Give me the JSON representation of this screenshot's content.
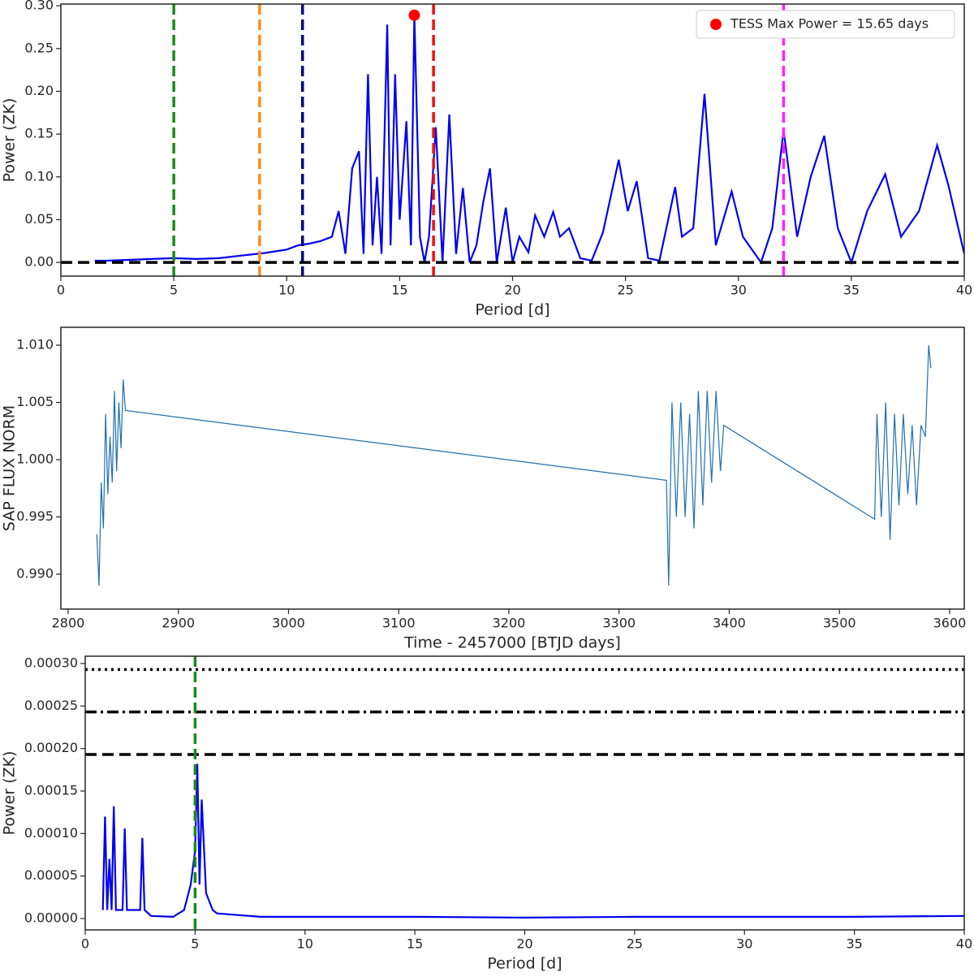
{
  "chart_data": [
    {
      "type": "line",
      "xlabel": "Period [d]",
      "ylabel": "Power (ZK)",
      "xlim": [
        0,
        40
      ],
      "ylim": [
        -0.016,
        0.302
      ],
      "xticks": [
        0,
        5,
        10,
        15,
        20,
        25,
        30,
        35,
        40
      ],
      "yticks": [
        {
          "value": 0,
          "label": "0.00"
        },
        {
          "value": 0.05,
          "label": "0.05"
        },
        {
          "value": 0.1,
          "label": "0.10"
        },
        {
          "value": 0.15,
          "label": "0.15"
        },
        {
          "value": 0.2,
          "label": "0.20"
        },
        {
          "value": 0.25,
          "label": "0.25"
        },
        {
          "value": 0.3,
          "label": "0.30"
        }
      ],
      "series": [
        {
          "color": "#0000ee",
          "x": [
            1.5,
            2,
            3,
            4,
            5,
            6,
            7,
            8,
            9,
            10,
            10.5,
            11,
            11.5,
            12,
            12.3,
            12.6,
            12.9,
            13.2,
            13.4,
            13.6,
            13.8,
            14.0,
            14.2,
            14.45,
            14.6,
            14.8,
            15.0,
            15.3,
            15.5,
            15.65,
            15.9,
            16.1,
            16.3,
            16.6,
            16.9,
            17.2,
            17.5,
            17.8,
            18.1,
            18.4,
            18.7,
            19.0,
            19.3,
            19.7,
            20.0,
            20.3,
            20.7,
            21.0,
            21.4,
            21.8,
            22.1,
            22.5,
            23.0,
            23.5,
            24.0,
            24.7,
            25.1,
            25.5,
            26.0,
            26.5,
            27.2,
            27.5,
            28.0,
            28.5,
            29.0,
            29.7,
            30.2,
            31.0,
            31.5,
            32.0,
            32.6,
            33.2,
            33.8,
            34.4,
            35.0,
            35.7,
            36.5,
            37.2,
            38.0,
            38.8,
            39.3,
            40.0
          ],
          "values": [
            0.002,
            0.002,
            0.003,
            0.004,
            0.005,
            0.004,
            0.005,
            0.008,
            0.011,
            0.015,
            0.02,
            0.022,
            0.025,
            0.03,
            0.06,
            0.01,
            0.11,
            0.13,
            0.01,
            0.22,
            0.02,
            0.1,
            0.01,
            0.278,
            0.02,
            0.22,
            0.05,
            0.165,
            0.02,
            0.289,
            0.03,
            0.0,
            0.03,
            0.158,
            0.0,
            0.173,
            0.01,
            0.087,
            0.0,
            0.02,
            0.07,
            0.11,
            0.0,
            0.064,
            0.0,
            0.03,
            0.012,
            0.055,
            0.03,
            0.059,
            0.03,
            0.04,
            0.005,
            0.002,
            0.035,
            0.12,
            0.06,
            0.095,
            0.005,
            0.002,
            0.088,
            0.03,
            0.04,
            0.197,
            0.02,
            0.083,
            0.03,
            0.0,
            0.04,
            0.155,
            0.03,
            0.1,
            0.148,
            0.04,
            0.0,
            0.06,
            0.103,
            0.03,
            0.06,
            0.137,
            0.09,
            0.01
          ]
        }
      ],
      "marker": {
        "name": "TESS Max Power = 15.65 days",
        "x": 15.65,
        "y": 0.289,
        "color": "#ff0000"
      },
      "vlines": [
        {
          "x": 5,
          "color": "#1a8a1a"
        },
        {
          "x": 8.8,
          "color": "#ff8c1a"
        },
        {
          "x": 10.7,
          "color": "#000080"
        },
        {
          "x": 16.5,
          "color": "#ee1111"
        },
        {
          "x": 32,
          "color": "#ff22ff"
        }
      ],
      "hlines": [
        {
          "y": 0,
          "style": "dashed",
          "color": "#000000"
        }
      ]
    },
    {
      "type": "line",
      "xlabel": "Time - 2457000 [BTJD days]",
      "ylabel": "SAP FLUX NORM",
      "xlim": [
        2793.4,
        3613.3
      ],
      "ylim": [
        0.98695,
        1.01156
      ],
      "xticks": [
        2800,
        2900,
        3000,
        3100,
        3200,
        3300,
        3400,
        3500,
        3600
      ],
      "yticks": [
        {
          "value": 0.99,
          "label": "0.990"
        },
        {
          "value": 0.995,
          "label": "0.995"
        },
        {
          "value": 1.0,
          "label": "1.000"
        },
        {
          "value": 1.005,
          "label": "1.005"
        },
        {
          "value": 1.01,
          "label": "1.010"
        }
      ],
      "series": [
        {
          "color": "#1f6fb0",
          "x": [
            2826,
            2828,
            2830,
            2832,
            2834,
            2836,
            2838,
            2840,
            2842,
            2844,
            2846,
            2848,
            2850,
            2852,
            3343,
            3345,
            3348,
            3352,
            3356,
            3360,
            3364,
            3368,
            3372,
            3376,
            3380,
            3384,
            3388,
            3392,
            3395,
            3532,
            3534,
            3538,
            3542,
            3546,
            3550,
            3554,
            3558,
            3562,
            3566,
            3570,
            3574,
            3578,
            3581,
            3583
          ],
          "values": [
            0.9935,
            0.989,
            0.998,
            0.994,
            1.004,
            0.997,
            1.002,
            0.998,
            1.006,
            0.999,
            1.005,
            1.001,
            1.007,
            1.0043,
            0.9982,
            0.989,
            1.005,
            0.995,
            1.005,
            0.995,
            1.004,
            0.994,
            1.006,
            0.996,
            1.006,
            0.998,
            1.006,
            0.999,
            1.003,
            0.9948,
            1.004,
            0.995,
            1.005,
            0.993,
            1.004,
            0.996,
            1.004,
            0.997,
            1.003,
            0.996,
            1.003,
            1.002,
            1.01,
            1.008
          ]
        }
      ],
      "vlines": [],
      "hlines": []
    },
    {
      "type": "line",
      "xlabel": "Period [d]",
      "ylabel": "Power (ZK)",
      "xlim": [
        0,
        40
      ],
      "ylim": [
        -1.34e-05,
        0.0003086
      ],
      "xticks": [
        0,
        5,
        10,
        15,
        20,
        25,
        30,
        35,
        40
      ],
      "yticks": [
        {
          "value": 0,
          "label": "0.00000"
        },
        {
          "value": 5e-05,
          "label": "0.00005"
        },
        {
          "value": 0.0001,
          "label": "0.00010"
        },
        {
          "value": 0.00015,
          "label": "0.00015"
        },
        {
          "value": 0.0002,
          "label": "0.00020"
        },
        {
          "value": 0.00025,
          "label": "0.00025"
        },
        {
          "value": 0.0003,
          "label": "0.00030"
        }
      ],
      "series": [
        {
          "color": "#0000ee",
          "x": [
            0.8,
            0.9,
            1.0,
            1.1,
            1.2,
            1.3,
            1.4,
            1.7,
            1.8,
            1.9,
            2.5,
            2.6,
            2.7,
            3,
            4,
            4.5,
            4.8,
            5.0,
            5.1,
            5.2,
            5.3,
            5.5,
            5.8,
            6,
            7,
            8,
            10,
            15,
            20,
            25,
            30,
            35,
            40
          ],
          "values": [
            1e-05,
            0.00012,
            1e-05,
            7e-05,
            1e-05,
            0.000132,
            1e-05,
            1e-05,
            0.000106,
            1e-05,
            1e-05,
            9.5e-05,
            1e-05,
            3e-06,
            2e-06,
            1e-05,
            4e-05,
            8e-05,
            0.000182,
            4e-05,
            0.00014,
            3e-05,
            1e-05,
            6e-06,
            4e-06,
            2e-06,
            2e-06,
            2e-06,
            1e-06,
            2e-06,
            2e-06,
            2e-06,
            3e-06
          ]
        }
      ],
      "vlines": [
        {
          "x": 5,
          "color": "#1a8a1a"
        }
      ],
      "hlines": [
        {
          "y": 0.000293,
          "style": "dotted",
          "color": "#000000"
        },
        {
          "y": 0.000243,
          "style": "dashdot",
          "color": "#000000"
        },
        {
          "y": 0.000193,
          "style": "dashed",
          "color": "#000000"
        }
      ]
    }
  ]
}
